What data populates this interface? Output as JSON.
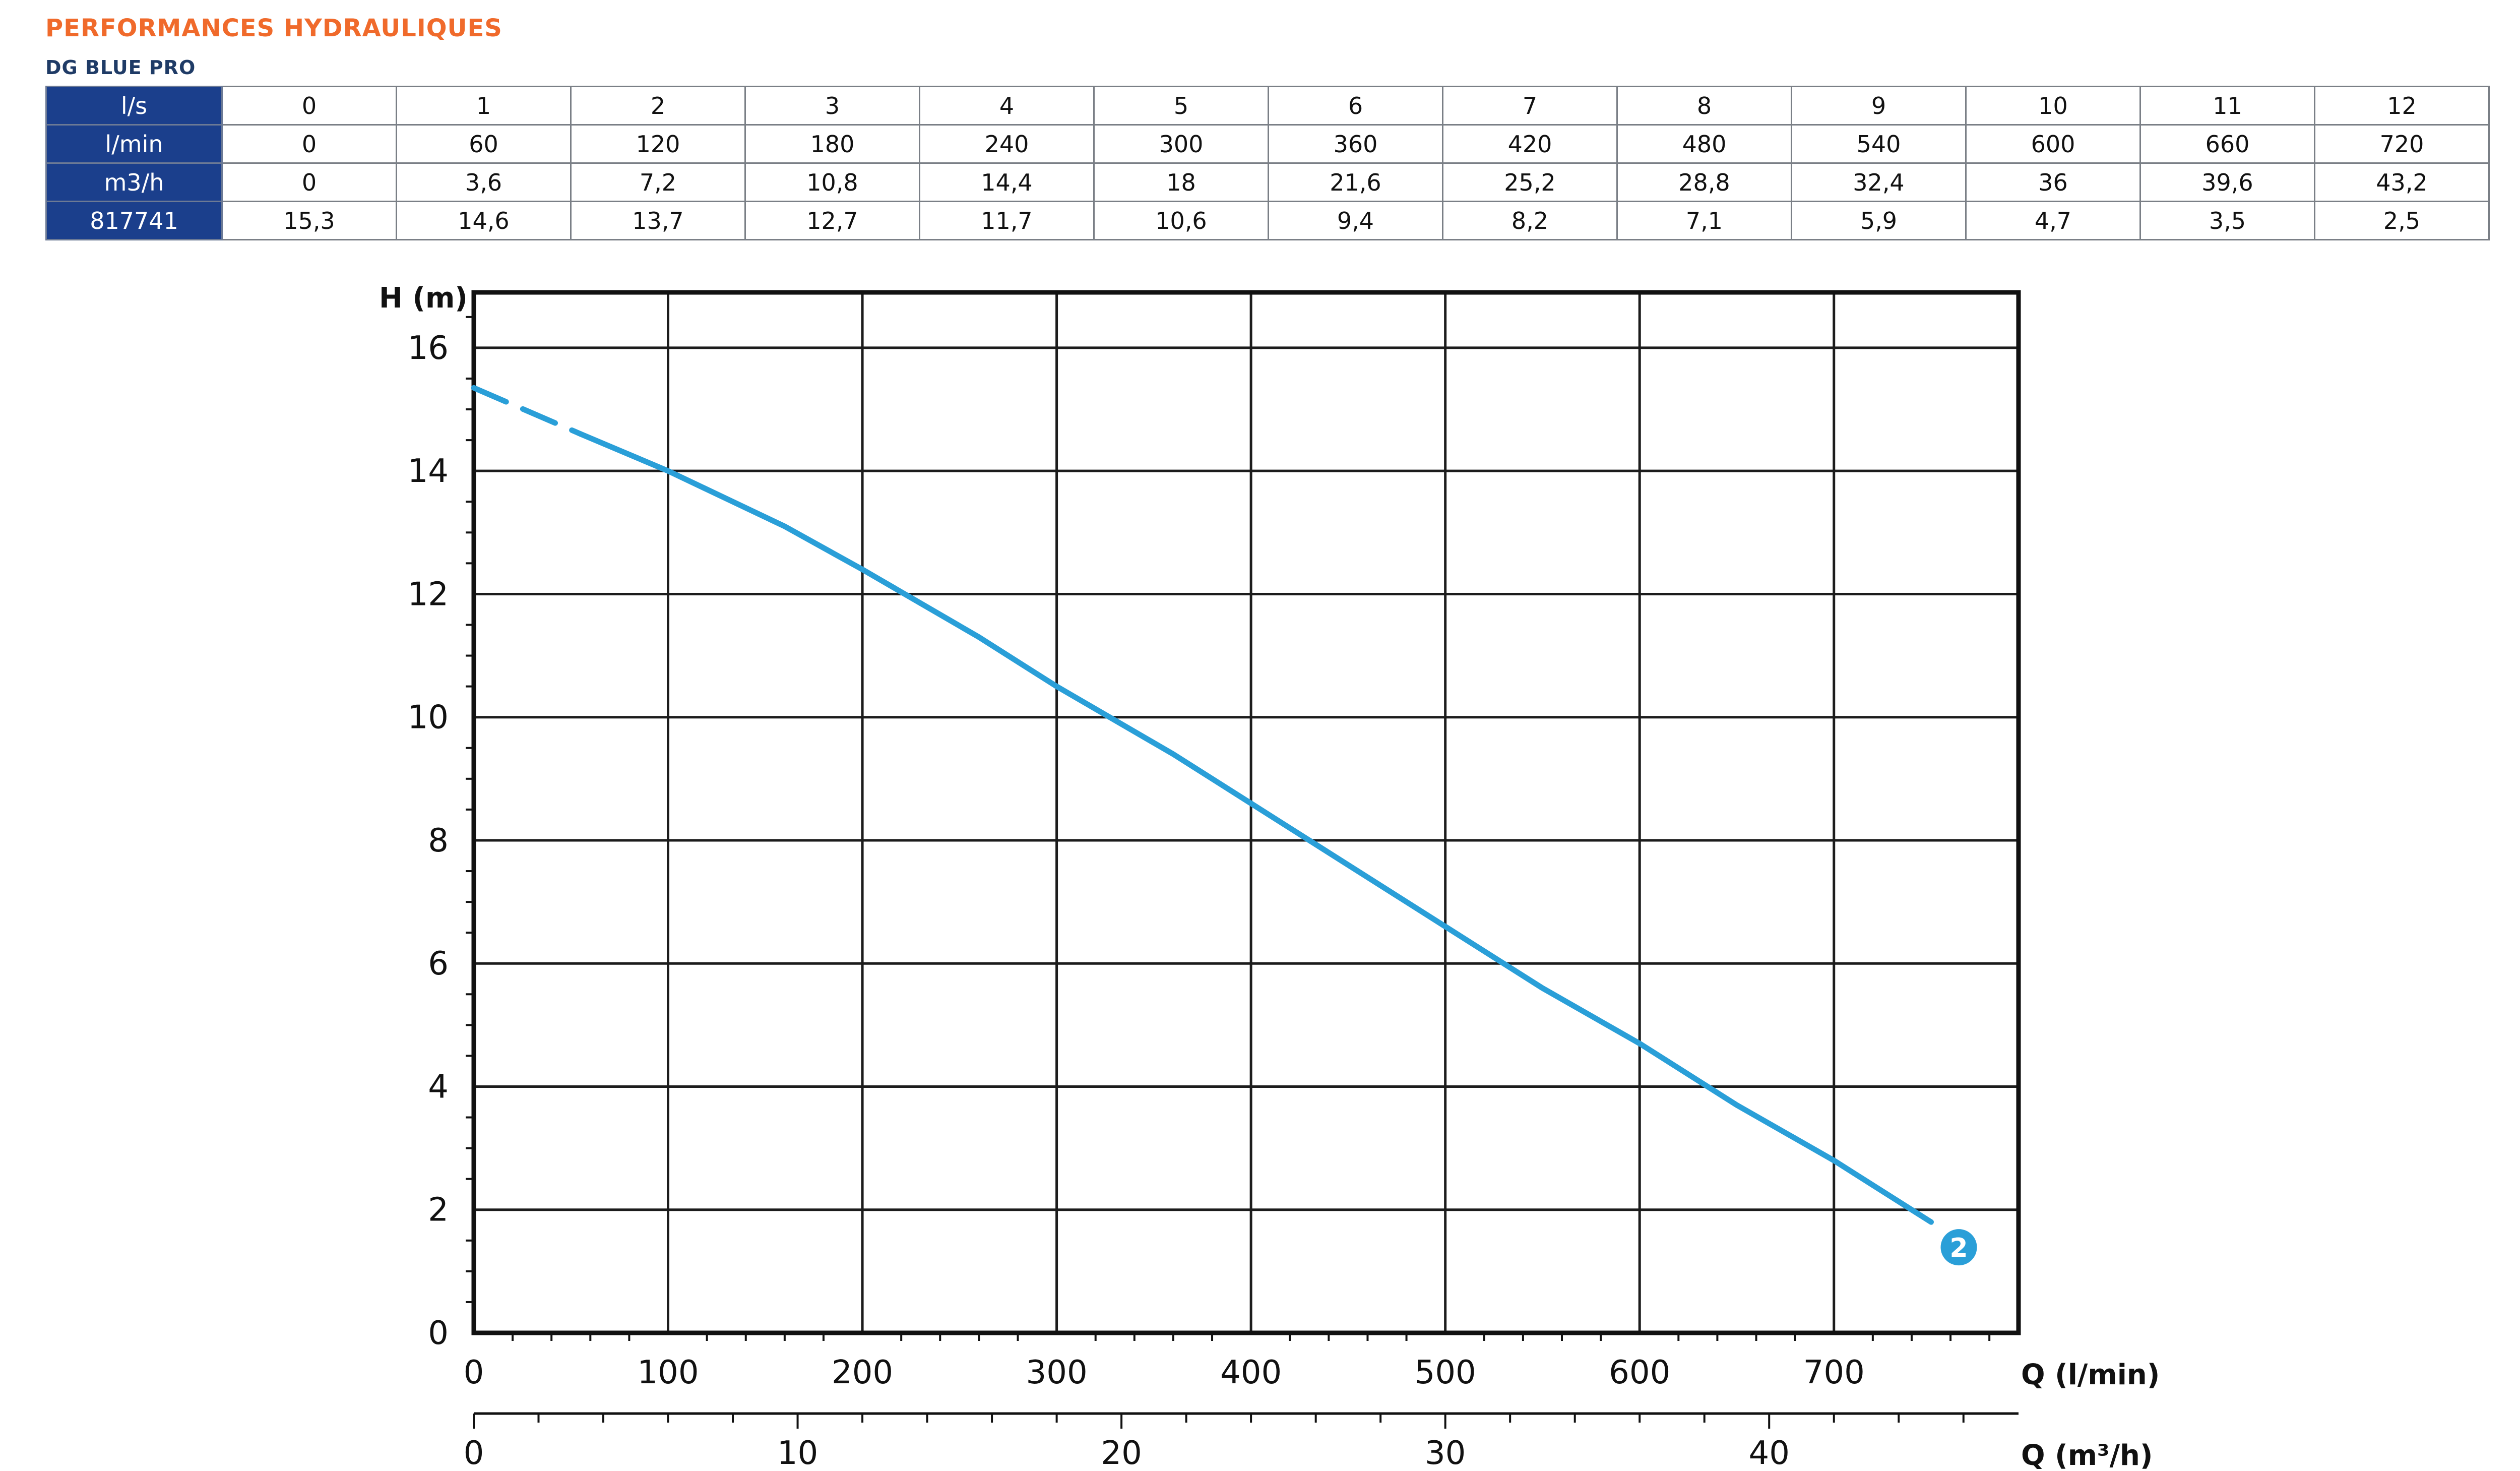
{
  "header": {
    "title": "PERFORMANCES HYDRAULIQUES",
    "subtitle": "DG BLUE PRO"
  },
  "table": {
    "rows": [
      {
        "label": "l/s",
        "values": [
          "0",
          "1",
          "2",
          "3",
          "4",
          "5",
          "6",
          "7",
          "8",
          "9",
          "10",
          "11",
          "12"
        ]
      },
      {
        "label": "l/min",
        "values": [
          "0",
          "60",
          "120",
          "180",
          "240",
          "300",
          "360",
          "420",
          "480",
          "540",
          "600",
          "660",
          "720"
        ]
      },
      {
        "label": "m3/h",
        "values": [
          "0",
          "3,6",
          "7,2",
          "10,8",
          "14,4",
          "18",
          "21,6",
          "25,2",
          "28,8",
          "32,4",
          "36",
          "39,6",
          "43,2"
        ]
      },
      {
        "label": "817741",
        "values": [
          "15,3",
          "14,6",
          "13,7",
          "12,7",
          "11,7",
          "10,6",
          "9,4",
          "8,2",
          "7,1",
          "5,9",
          "4,7",
          "3,5",
          "2,5"
        ]
      }
    ]
  },
  "chart_data": {
    "type": "line",
    "ylabel": "H (m)",
    "xlabel": "Q (l/min)",
    "xlabel_secondary": "Q (m³/h)",
    "xlim": [
      0,
      795
    ],
    "ylim": [
      0,
      16.9
    ],
    "x_ticks": [
      0,
      100,
      200,
      300,
      400,
      500,
      600,
      700
    ],
    "x_ticks_secondary": [
      0,
      10,
      20,
      30,
      40
    ],
    "y_ticks": [
      0,
      2,
      4,
      6,
      8,
      10,
      12,
      14,
      16
    ],
    "grid": true,
    "series": [
      {
        "name": "2",
        "color": "#2a9fd8",
        "dashed_segment": {
          "x": [
            0,
            55
          ],
          "y": [
            15.35,
            14.6
          ]
        },
        "x": [
          55,
          100,
          160,
          200,
          260,
          300,
          360,
          400,
          450,
          500,
          550,
          600,
          650,
          700,
          750
        ],
        "y": [
          14.6,
          14.0,
          13.1,
          12.4,
          11.3,
          10.5,
          9.4,
          8.6,
          7.6,
          6.6,
          5.6,
          4.7,
          3.7,
          2.8,
          1.8
        ]
      }
    ]
  }
}
